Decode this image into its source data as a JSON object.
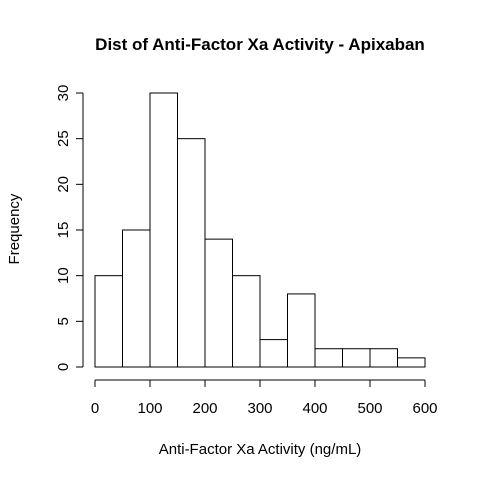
{
  "chart_data": {
    "type": "bar",
    "title": "Dist of Anti-Factor Xa Activity - Apixaban",
    "xlabel": "Anti-Factor Xa Activity (ng/mL)",
    "ylabel": "Frequency",
    "bins": [
      {
        "start": 0,
        "end": 50,
        "count": 10
      },
      {
        "start": 50,
        "end": 100,
        "count": 15
      },
      {
        "start": 100,
        "end": 150,
        "count": 30
      },
      {
        "start": 150,
        "end": 200,
        "count": 25
      },
      {
        "start": 200,
        "end": 250,
        "count": 14
      },
      {
        "start": 250,
        "end": 300,
        "count": 10
      },
      {
        "start": 300,
        "end": 350,
        "count": 3
      },
      {
        "start": 350,
        "end": 400,
        "count": 8
      },
      {
        "start": 400,
        "end": 450,
        "count": 2
      },
      {
        "start": 450,
        "end": 500,
        "count": 2
      },
      {
        "start": 500,
        "end": 550,
        "count": 2
      },
      {
        "start": 550,
        "end": 600,
        "count": 1
      }
    ],
    "xlim": [
      0,
      600
    ],
    "ylim": [
      0,
      30
    ],
    "x_ticks": [
      0,
      100,
      200,
      300,
      400,
      500,
      600
    ],
    "y_ticks": [
      0,
      5,
      10,
      15,
      20,
      25,
      30
    ],
    "bar_fill": "#ffffff",
    "bar_stroke": "#000000",
    "grid": false,
    "legend": "none"
  }
}
